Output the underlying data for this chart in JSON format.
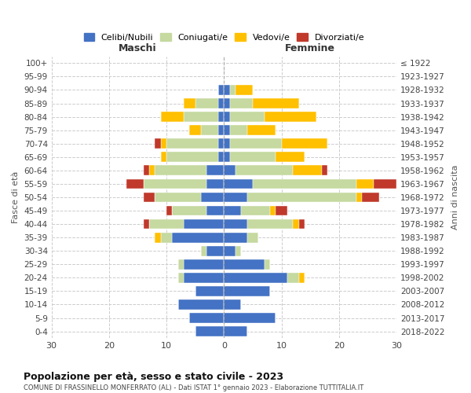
{
  "age_groups": [
    "0-4",
    "5-9",
    "10-14",
    "15-19",
    "20-24",
    "25-29",
    "30-34",
    "35-39",
    "40-44",
    "45-49",
    "50-54",
    "55-59",
    "60-64",
    "65-69",
    "70-74",
    "75-79",
    "80-84",
    "85-89",
    "90-94",
    "95-99",
    "100+"
  ],
  "birth_years": [
    "2018-2022",
    "2013-2017",
    "2008-2012",
    "2003-2007",
    "1998-2002",
    "1993-1997",
    "1988-1992",
    "1983-1987",
    "1978-1982",
    "1973-1977",
    "1968-1972",
    "1963-1967",
    "1958-1962",
    "1953-1957",
    "1948-1952",
    "1943-1947",
    "1938-1942",
    "1933-1937",
    "1928-1932",
    "1923-1927",
    "≤ 1922"
  ],
  "maschi": {
    "celibi": [
      5,
      6,
      8,
      5,
      7,
      7,
      3,
      9,
      7,
      3,
      4,
      3,
      3,
      1,
      1,
      1,
      1,
      1,
      1,
      0,
      0
    ],
    "coniugati": [
      0,
      0,
      0,
      0,
      1,
      1,
      1,
      2,
      6,
      6,
      8,
      11,
      9,
      9,
      9,
      3,
      6,
      4,
      0,
      0,
      0
    ],
    "vedovi": [
      0,
      0,
      0,
      0,
      0,
      0,
      0,
      1,
      0,
      0,
      0,
      0,
      1,
      1,
      1,
      2,
      4,
      2,
      0,
      0,
      0
    ],
    "divorziati": [
      0,
      0,
      0,
      0,
      0,
      0,
      0,
      0,
      1,
      1,
      2,
      3,
      1,
      0,
      1,
      0,
      0,
      0,
      0,
      0,
      0
    ]
  },
  "femmine": {
    "nubili": [
      4,
      9,
      3,
      8,
      11,
      7,
      2,
      4,
      4,
      3,
      4,
      5,
      2,
      1,
      1,
      1,
      1,
      1,
      1,
      0,
      0
    ],
    "coniugate": [
      0,
      0,
      0,
      0,
      2,
      1,
      1,
      2,
      8,
      5,
      19,
      18,
      10,
      8,
      9,
      3,
      6,
      4,
      1,
      0,
      0
    ],
    "vedove": [
      0,
      0,
      0,
      0,
      1,
      0,
      0,
      0,
      1,
      1,
      1,
      3,
      5,
      5,
      8,
      5,
      9,
      8,
      3,
      0,
      0
    ],
    "divorziate": [
      0,
      0,
      0,
      0,
      0,
      0,
      0,
      0,
      1,
      2,
      3,
      4,
      1,
      0,
      0,
      0,
      0,
      0,
      0,
      0,
      0
    ]
  },
  "colors": {
    "celibi": "#4472c4",
    "coniugati": "#c5d9a0",
    "vedovi": "#ffc000",
    "divorziati": "#c0392b"
  },
  "legend_labels": [
    "Celibi/Nubili",
    "Coniugati/e",
    "Vedovi/e",
    "Divorziati/e"
  ],
  "title": "Popolazione per età, sesso e stato civile - 2023",
  "subtitle": "COMUNE DI FRASSINELLO MONFERRATO (AL) - Dati ISTAT 1° gennaio 2023 - Elaborazione TUTTITALIA.IT",
  "xlabel_left": "Maschi",
  "xlabel_right": "Femmine",
  "ylabel_left": "Fasce di età",
  "ylabel_right": "Anni di nascita",
  "xlim": 30,
  "background_color": "#ffffff"
}
